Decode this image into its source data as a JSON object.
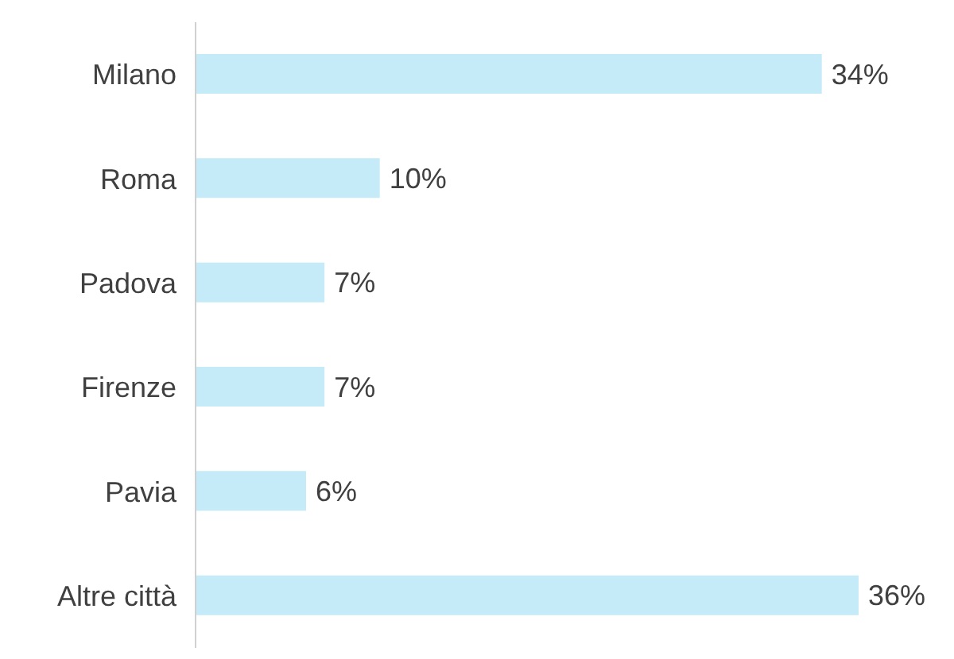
{
  "chart_data": {
    "type": "bar",
    "orientation": "horizontal",
    "categories": [
      "Milano",
      "Roma",
      "Padova",
      "Firenze",
      "Pavia",
      "Altre città"
    ],
    "values": [
      34,
      10,
      7,
      7,
      6,
      36
    ],
    "value_labels": [
      "34%",
      "10%",
      "7%",
      "7%",
      "6%",
      "36%"
    ],
    "color": "#c5eaf8"
  }
}
